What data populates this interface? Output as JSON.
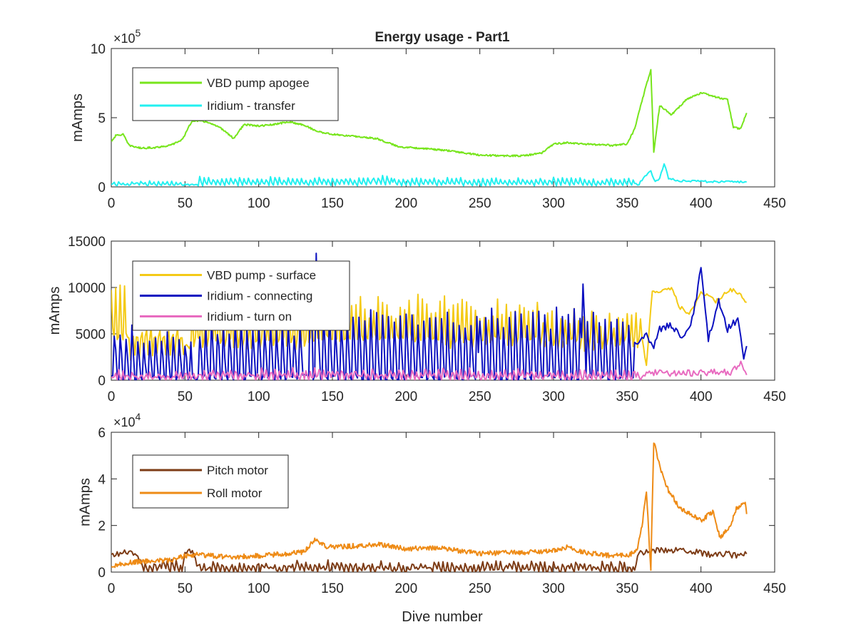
{
  "chart_data": {
    "type": "line",
    "title": "Energy usage - Part1",
    "xlabel": "Dive number",
    "xlim": [
      0,
      450
    ],
    "xticks": [
      "0",
      "50",
      "100",
      "150",
      "200",
      "250",
      "300",
      "350",
      "400",
      "450"
    ],
    "subplots": [
      {
        "ylabel": "mAmps",
        "ylim": [
          0,
          1000000
        ],
        "exponent_label": "×10",
        "exponent_power": "5",
        "yticks": [
          {
            "value": 0,
            "label": "0"
          },
          {
            "value": 500000,
            "label": "5"
          },
          {
            "value": 1000000,
            "label": "10"
          }
        ],
        "legend_location": "top-left",
        "series": [
          {
            "name": "VBD pump apogee",
            "color": "#77e51c",
            "pattern": "noisy",
            "noise": 0.012,
            "points": [
              [
                0,
                330000
              ],
              [
                3,
                370000
              ],
              [
                8,
                380000
              ],
              [
                12,
                300000
              ],
              [
                20,
                280000
              ],
              [
                30,
                285000
              ],
              [
                40,
                300000
              ],
              [
                48,
                340000
              ],
              [
                55,
                480000
              ],
              [
                65,
                470000
              ],
              [
                75,
                420000
              ],
              [
                83,
                350000
              ],
              [
                90,
                450000
              ],
              [
                100,
                440000
              ],
              [
                110,
                450000
              ],
              [
                120,
                470000
              ],
              [
                130,
                450000
              ],
              [
                140,
                400000
              ],
              [
                150,
                380000
              ],
              [
                160,
                370000
              ],
              [
                170,
                360000
              ],
              [
                180,
                350000
              ],
              [
                195,
                290000
              ],
              [
                210,
                280000
              ],
              [
                230,
                260000
              ],
              [
                250,
                230000
              ],
              [
                265,
                225000
              ],
              [
                280,
                225000
              ],
              [
                292,
                245000
              ],
              [
                300,
                310000
              ],
              [
                310,
                320000
              ],
              [
                320,
                310000
              ],
              [
                340,
                300000
              ],
              [
                350,
                310000
              ],
              [
                355,
                420000
              ],
              [
                362,
                700000
              ],
              [
                366,
                850000
              ],
              [
                368,
                250000
              ],
              [
                372,
                590000
              ],
              [
                380,
                520000
              ],
              [
                390,
                630000
              ],
              [
                400,
                680000
              ],
              [
                410,
                650000
              ],
              [
                418,
                630000
              ],
              [
                422,
                430000
              ],
              [
                427,
                420000
              ],
              [
                431,
                540000
              ]
            ]
          },
          {
            "name": "Iridium - transfer",
            "color": "#22f0f0",
            "pattern": "spikes",
            "base": 15000,
            "period": 3,
            "noise": 0.015,
            "spike_ranges": [
              [
                2,
                48,
                40000
              ],
              [
                60,
                178,
                70000
              ],
              [
                178,
                192,
                80000
              ],
              [
                192,
                355,
                65000
              ]
            ],
            "points": [
              [
                0,
                15000
              ],
              [
                350,
                15000
              ],
              [
                358,
                20000
              ],
              [
                362,
                80000
              ],
              [
                366,
                110000
              ],
              [
                369,
                40000
              ],
              [
                372,
                60000
              ],
              [
                375,
                170000
              ],
              [
                378,
                60000
              ],
              [
                385,
                45000
              ],
              [
                400,
                40000
              ],
              [
                420,
                35000
              ],
              [
                431,
                35000
              ]
            ]
          }
        ]
      },
      {
        "ylabel": "mAmps",
        "ylim": [
          0,
          15000
        ],
        "yticks": [
          {
            "value": 0,
            "label": "0"
          },
          {
            "value": 5000,
            "label": "5000"
          },
          {
            "value": 10000,
            "label": "10000"
          },
          {
            "value": 15000,
            "label": "15000"
          }
        ],
        "legend_location": "top-left",
        "series": [
          {
            "name": "VBD pump - surface",
            "color": "#f4ca16",
            "pattern": "spikes",
            "base": 4500,
            "period": 3,
            "noise": 0.03,
            "spike_ranges": [
              [
                0,
                12,
                10500
              ],
              [
                12,
                50,
                5500
              ],
              [
                55,
                130,
                8500
              ],
              [
                130,
                220,
                9300
              ],
              [
                220,
                290,
                9000
              ],
              [
                290,
                360,
                7800
              ]
            ],
            "points": [
              [
                0,
                3500
              ],
              [
                360,
                4500
              ],
              [
                363,
                1500
              ],
              [
                367,
                9800
              ],
              [
                372,
                9500
              ],
              [
                380,
                10000
              ],
              [
                385,
                8000
              ],
              [
                392,
                7000
              ],
              [
                400,
                9500
              ],
              [
                410,
                8500
              ],
              [
                420,
                9800
              ],
              [
                425,
                9500
              ],
              [
                431,
                8300
              ]
            ]
          },
          {
            "name": "Iridium - connecting",
            "color": "#0b10c0",
            "pattern": "spikes",
            "base": 200,
            "period": 4,
            "noise": 0.05,
            "spike_ranges": [
              [
                2,
                18,
                6000
              ],
              [
                18,
                55,
                5000
              ],
              [
                60,
                130,
                6500
              ],
              [
                135,
                140,
                13800
              ],
              [
                140,
                250,
                7500
              ],
              [
                250,
                320,
                8000
              ],
              [
                320,
                323,
                12800
              ],
              [
                323,
                355,
                7000
              ]
            ],
            "points": [
              [
                0,
                300
              ],
              [
                350,
                300
              ],
              [
                352,
                5500
              ],
              [
                356,
                4000
              ],
              [
                362,
                5000
              ],
              [
                368,
                3500
              ],
              [
                372,
                5500
              ],
              [
                380,
                6000
              ],
              [
                388,
                4500
              ],
              [
                395,
                7000
              ],
              [
                400,
                12300
              ],
              [
                405,
                4500
              ],
              [
                412,
                8500
              ],
              [
                418,
                5500
              ],
              [
                425,
                6600
              ],
              [
                429,
                2300
              ],
              [
                431,
                4000
              ]
            ]
          },
          {
            "name": "Iridium - turn on",
            "color": "#e86bc0",
            "pattern": "spikes",
            "base": 150,
            "period": 3,
            "noise": 0.05,
            "spike_ranges": [
              [
                2,
                20,
                900
              ],
              [
                20,
                60,
                700
              ],
              [
                60,
                360,
                1100
              ]
            ],
            "points": [
              [
                0,
                200
              ],
              [
                360,
                200
              ],
              [
                362,
                700
              ],
              [
                370,
                800
              ],
              [
                380,
                750
              ],
              [
                400,
                800
              ],
              [
                410,
                1000
              ],
              [
                420,
                800
              ],
              [
                428,
                1800
              ],
              [
                431,
                800
              ]
            ]
          }
        ]
      },
      {
        "ylabel": "mAmps",
        "ylim": [
          0,
          60000
        ],
        "exponent_label": "×10",
        "exponent_power": "4",
        "yticks": [
          {
            "value": 0,
            "label": "0"
          },
          {
            "value": 20000,
            "label": "2"
          },
          {
            "value": 40000,
            "label": "4"
          },
          {
            "value": 60000,
            "label": "6"
          }
        ],
        "legend_location": "top-left",
        "series": [
          {
            "name": "Pitch motor",
            "color": "#7d3c16",
            "pattern": "spikes",
            "base": 400,
            "period": 3,
            "noise": 0.05,
            "spike_ranges": [
              [
                20,
                48,
                4500
              ],
              [
                60,
                355,
                4000
              ]
            ],
            "points": [
              [
                0,
                7000
              ],
              [
                5,
                8000
              ],
              [
                15,
                8500
              ],
              [
                18,
                6000
              ],
              [
                20,
                400
              ],
              [
                48,
                400
              ],
              [
                50,
                8500
              ],
              [
                55,
                9000
              ],
              [
                60,
                400
              ],
              [
                355,
                400
              ],
              [
                358,
                8000
              ],
              [
                365,
                9000
              ],
              [
                370,
                9000
              ],
              [
                380,
                9500
              ],
              [
                390,
                9000
              ],
              [
                400,
                8000
              ],
              [
                410,
                7500
              ],
              [
                431,
                7500
              ]
            ]
          },
          {
            "name": "Roll motor",
            "color": "#ee8b16",
            "pattern": "noisy",
            "noise": 0.035,
            "points": [
              [
                0,
                2000
              ],
              [
                5,
                3000
              ],
              [
                10,
                4000
              ],
              [
                20,
                4500
              ],
              [
                30,
                5000
              ],
              [
                40,
                5000
              ],
              [
                50,
                7000
              ],
              [
                60,
                7500
              ],
              [
                70,
                7000
              ],
              [
                80,
                6500
              ],
              [
                100,
                7000
              ],
              [
                120,
                8000
              ],
              [
                130,
                8500
              ],
              [
                138,
                14000
              ],
              [
                145,
                11000
              ],
              [
                160,
                11000
              ],
              [
                180,
                12000
              ],
              [
                200,
                10000
              ],
              [
                220,
                10500
              ],
              [
                250,
                8000
              ],
              [
                280,
                8500
              ],
              [
                300,
                9000
              ],
              [
                310,
                11000
              ],
              [
                320,
                8500
              ],
              [
                340,
                7000
              ],
              [
                352,
                7500
              ],
              [
                357,
                10000
              ],
              [
                360,
                20000
              ],
              [
                363,
                35000
              ],
              [
                366,
                500
              ],
              [
                367,
                30000
              ],
              [
                368,
                56000
              ],
              [
                372,
                45000
              ],
              [
                378,
                35000
              ],
              [
                385,
                28000
              ],
              [
                393,
                25000
              ],
              [
                400,
                22000
              ],
              [
                408,
                26000
              ],
              [
                413,
                15000
              ],
              [
                420,
                20000
              ],
              [
                424,
                27000
              ],
              [
                430,
                30000
              ],
              [
                431,
                24000
              ]
            ]
          }
        ]
      }
    ]
  }
}
